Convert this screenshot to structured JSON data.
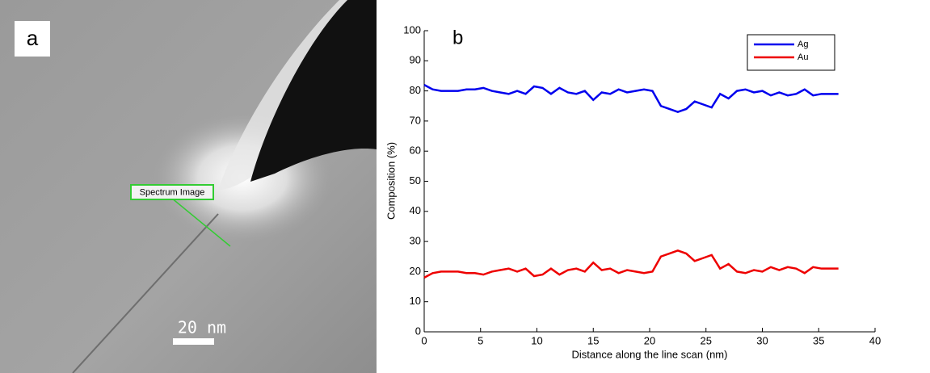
{
  "panel_a": {
    "label": "a",
    "annotation": "Spectrum Image",
    "scale_bar": "20 nm"
  },
  "chart_data": {
    "type": "line",
    "panel_label": "b",
    "x_label": "Distance along the line scan (nm)",
    "y_label": "Composition (%)",
    "x": [
      0,
      0.75,
      1.5,
      2.25,
      3,
      3.75,
      4.5,
      5.25,
      6,
      6.75,
      7.5,
      8.25,
      9,
      9.75,
      10.5,
      11.25,
      12,
      12.75,
      13.5,
      14.25,
      15,
      15.75,
      16.5,
      17.25,
      18,
      18.75,
      19.5,
      20.25,
      21,
      21.75,
      22.5,
      23.25,
      24,
      24.75,
      25.5,
      26.25,
      27,
      27.75,
      28.5,
      29.25,
      30,
      30.75,
      31.5,
      32.25,
      33,
      33.75,
      34.5,
      35.25,
      36,
      36.75
    ],
    "series": [
      {
        "name": "Ag",
        "color": "#0000ee",
        "values": [
          82,
          80.5,
          80,
          80,
          80,
          80.5,
          80.5,
          81,
          80,
          79.5,
          79,
          80,
          79,
          81.5,
          81,
          79,
          81,
          79.5,
          79,
          80,
          77,
          79.5,
          79,
          80.5,
          79.5,
          80,
          80.5,
          80,
          75,
          74,
          73,
          74,
          76.5,
          75.5,
          74.5,
          79,
          77.5,
          80,
          80.5,
          79.5,
          80,
          78.5,
          79.5,
          78.5,
          79,
          80.5,
          78.5,
          79,
          79,
          79
        ]
      },
      {
        "name": "Au",
        "color": "#ee0000",
        "values": [
          18,
          19.5,
          20,
          20,
          20,
          19.5,
          19.5,
          19,
          20,
          20.5,
          21,
          20,
          21,
          18.5,
          19,
          21,
          19,
          20.5,
          21,
          20,
          23,
          20.5,
          21,
          19.5,
          20.5,
          20,
          19.5,
          20,
          25,
          26,
          27,
          26,
          23.5,
          24.5,
          25.5,
          21,
          22.5,
          20,
          19.5,
          20.5,
          20,
          21.5,
          20.5,
          21.5,
          21,
          19.5,
          21.5,
          21,
          21,
          21
        ]
      }
    ],
    "xlim": [
      0,
      40
    ],
    "xticks": [
      0,
      5,
      10,
      15,
      20,
      25,
      30,
      35,
      40
    ],
    "ylim": [
      0,
      100
    ],
    "yticks": [
      0,
      10,
      20,
      30,
      40,
      50,
      60,
      70,
      80,
      90,
      100
    ],
    "legend": "upper right"
  }
}
